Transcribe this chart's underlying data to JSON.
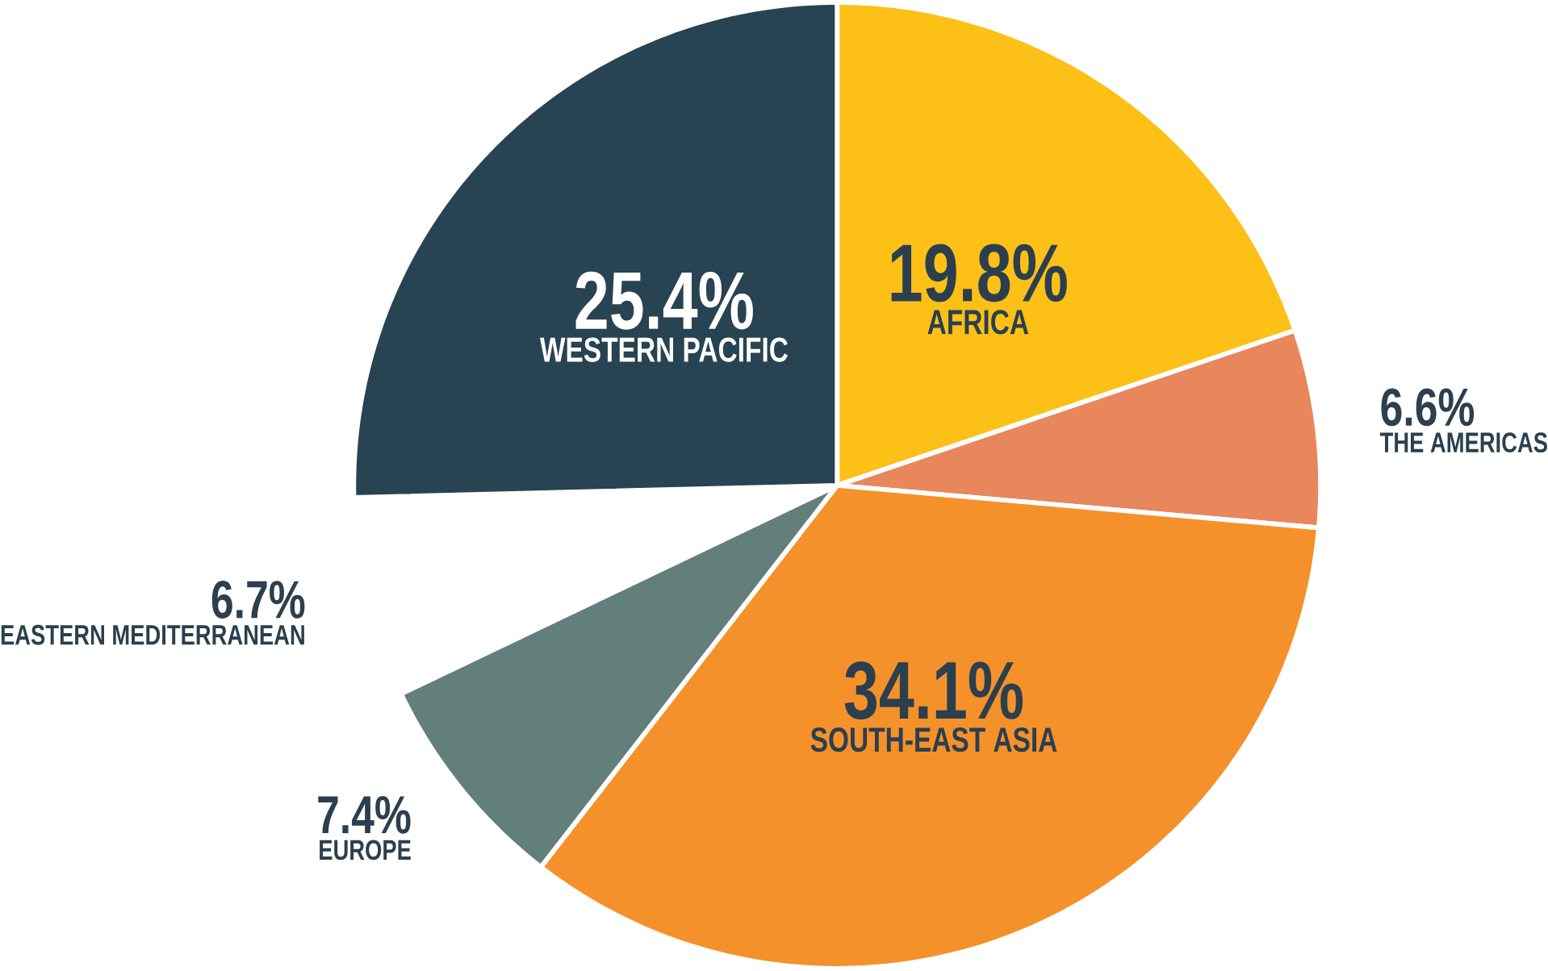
{
  "chart_data": {
    "type": "pie",
    "categories": [
      "AFRICA",
      "THE AMERICAS",
      "SOUTH-EAST ASIA",
      "EUROPE",
      "EASTERN MEDITERRANEAN",
      "WESTERN PACIFIC"
    ],
    "values": [
      19.8,
      6.6,
      34.1,
      7.4,
      6.7,
      25.4
    ],
    "value_labels": [
      "19.8%",
      "6.6%",
      "34.1%",
      "7.4%",
      "6.7%",
      "25.4%"
    ],
    "colors": [
      "#fcc017",
      "#e8875c",
      "#f5912a",
      "#637f7c",
      "#ffffff",
      "#284352"
    ]
  }
}
